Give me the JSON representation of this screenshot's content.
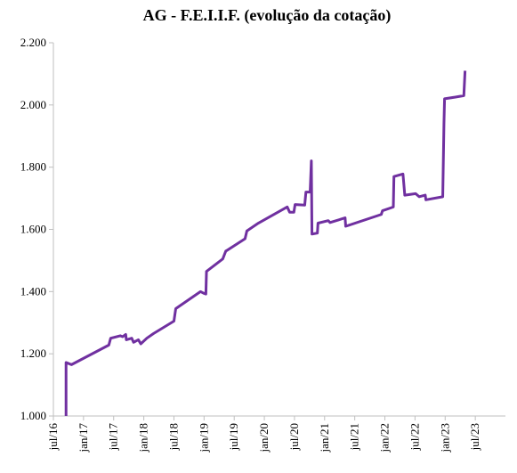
{
  "chart_data": {
    "type": "line",
    "title": "AG - F.E.I.I.F. (evolução da cotação)",
    "x": [
      2016.71,
      2016.71,
      2016.8,
      2017.42,
      2017.45,
      2017.61,
      2017.65,
      2017.7,
      2017.71,
      2017.8,
      2017.83,
      2017.91,
      2017.95,
      2018.05,
      2018.16,
      2018.5,
      2018.53,
      2018.94,
      2018.99,
      2019.03,
      2019.04,
      2019.31,
      2019.36,
      2019.68,
      2019.71,
      2019.9,
      2020.38,
      2020.42,
      2020.49,
      2020.51,
      2020.67,
      2020.69,
      2020.76,
      2020.78,
      2020.79,
      2020.88,
      2020.89,
      2021.06,
      2021.09,
      2021.34,
      2021.35,
      2021.94,
      2021.96,
      2022.14,
      2022.15,
      2022.3,
      2022.33,
      2022.51,
      2022.57,
      2022.67,
      2022.68,
      2022.96,
      2022.98,
      2022.99,
      2023.16,
      2023.31,
      2023.33
    ],
    "series": [
      {
        "name": "AG - F.E.I.I.F.",
        "color": "#7030a0",
        "values": [
          1.0,
          1.172,
          1.165,
          1.228,
          1.25,
          1.258,
          1.255,
          1.262,
          1.245,
          1.25,
          1.237,
          1.245,
          1.232,
          1.25,
          1.265,
          1.305,
          1.345,
          1.4,
          1.395,
          1.392,
          1.465,
          1.505,
          1.53,
          1.57,
          1.595,
          1.62,
          1.672,
          1.655,
          1.655,
          1.68,
          1.678,
          1.72,
          1.72,
          1.82,
          1.585,
          1.588,
          1.62,
          1.628,
          1.622,
          1.637,
          1.61,
          1.648,
          1.66,
          1.672,
          1.77,
          1.778,
          1.71,
          1.715,
          1.705,
          1.71,
          1.695,
          1.705,
          1.94,
          2.02,
          2.025,
          2.03,
          2.11
        ]
      }
    ],
    "xlim": [
      2016.5,
      2024.0
    ],
    "xticks": [
      {
        "value": 2016.5,
        "label": "jul/16"
      },
      {
        "value": 2017.0,
        "label": "jan/17"
      },
      {
        "value": 2017.5,
        "label": "jul/17"
      },
      {
        "value": 2018.0,
        "label": "jan/18"
      },
      {
        "value": 2018.5,
        "label": "jul/18"
      },
      {
        "value": 2019.0,
        "label": "jan/19"
      },
      {
        "value": 2019.5,
        "label": "jul/19"
      },
      {
        "value": 2020.0,
        "label": "jan/20"
      },
      {
        "value": 2020.5,
        "label": "jul/20"
      },
      {
        "value": 2021.0,
        "label": "jan/21"
      },
      {
        "value": 2021.5,
        "label": "jul/21"
      },
      {
        "value": 2022.0,
        "label": "jan/22"
      },
      {
        "value": 2022.5,
        "label": "jul/22"
      },
      {
        "value": 2023.0,
        "label": "jan/23"
      },
      {
        "value": 2023.5,
        "label": "jul/23"
      }
    ],
    "ylim": [
      1.0,
      2.2
    ],
    "yticks": [
      {
        "value": 1.0,
        "label": "1.000"
      },
      {
        "value": 1.2,
        "label": "1.200"
      },
      {
        "value": 1.4,
        "label": "1.400"
      },
      {
        "value": 1.6,
        "label": "1.600"
      },
      {
        "value": 1.8,
        "label": "1.800"
      },
      {
        "value": 2.0,
        "label": "2.000"
      },
      {
        "value": 2.2,
        "label": "2.200"
      }
    ],
    "grid": false
  }
}
